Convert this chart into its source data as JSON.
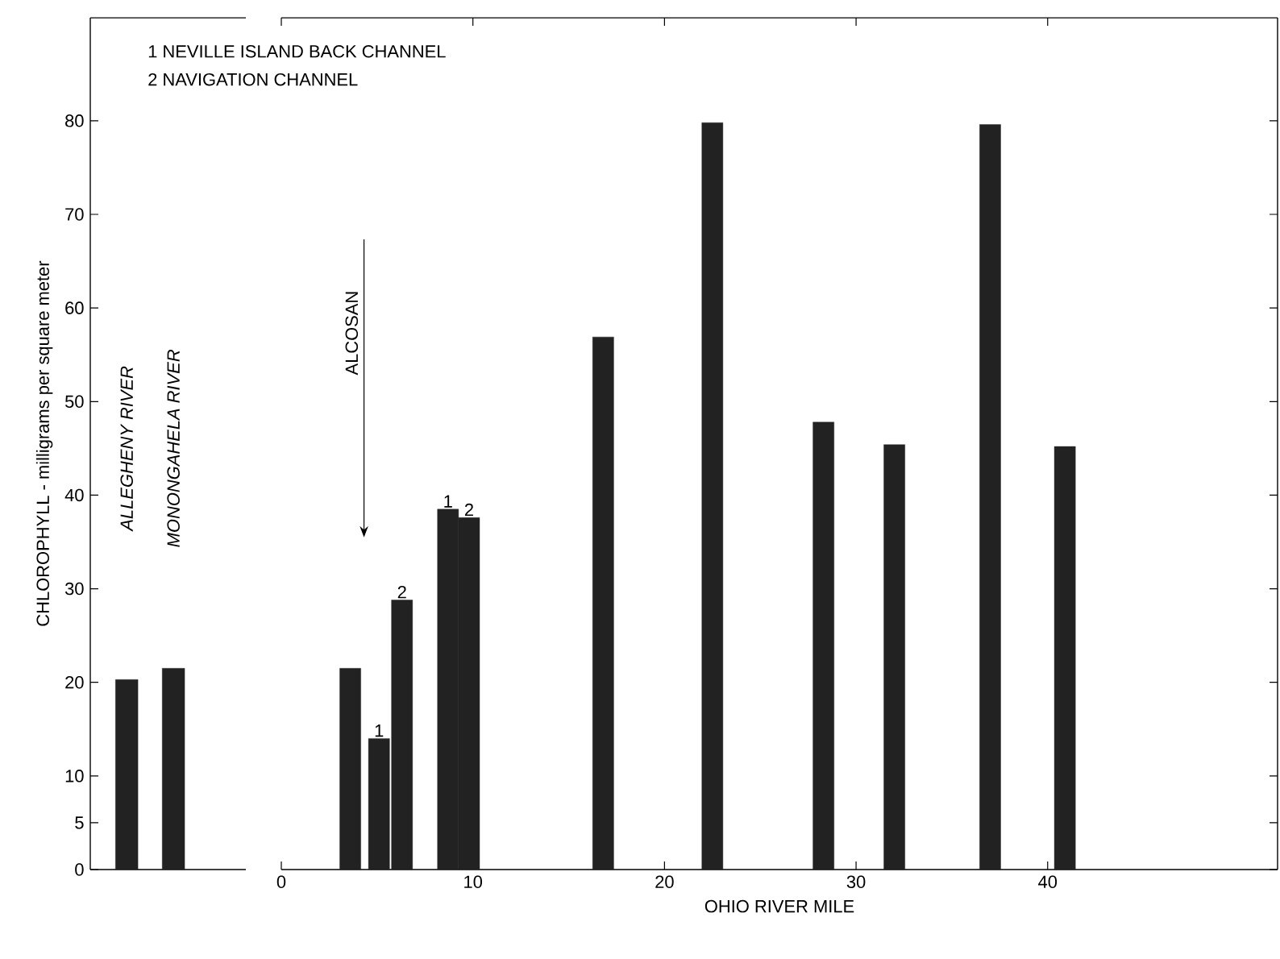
{
  "chart_data": [
    {
      "type": "bar",
      "categories": [
        "ALLEGHENY RIVER",
        "MONONGAHELA RIVER"
      ],
      "values": [
        20.3,
        21.5
      ],
      "color": "#222222",
      "ylabel": "CHLOROPHYLL - milligrams per square meter",
      "ylim": [
        0,
        91
      ],
      "yticks": [
        0,
        5,
        10,
        20,
        30,
        40,
        50,
        60,
        70,
        80
      ],
      "annotations": [
        "1  NEVILLE  ISLAND BACK CHANNEL",
        "2  NAVIGATION  CHANNEL"
      ]
    },
    {
      "type": "bar",
      "x": [
        3.6,
        5.1,
        6.3,
        8.7,
        9.8,
        16.8,
        22.5,
        28.3,
        32.0,
        37.0,
        40.9
      ],
      "values": [
        21.5,
        14,
        28.8,
        38.5,
        37.6,
        56.9,
        79.8,
        47.8,
        45.4,
        79.6,
        45.2
      ],
      "color": "#222222",
      "xlabel": "OHIO  RIVER  MILE",
      "xlim": [
        0,
        52
      ],
      "xticks": [
        0,
        10,
        20,
        30,
        40
      ],
      "ylim": [
        0,
        91
      ],
      "yticks": [
        0,
        5,
        10,
        20,
        30,
        40,
        50,
        60,
        70,
        80
      ],
      "tick_labels": "x",
      "annotations": [
        "ALCOSAN",
        {
          "text": "1",
          "x": 5.1,
          "y": 14
        },
        {
          "text": "2",
          "x": 6.3,
          "y": 28.8
        },
        {
          "text": "1",
          "x": 8.7,
          "y": 38.5
        },
        {
          "text": "2",
          "x": 9.8,
          "y": 37.6
        }
      ]
    }
  ]
}
